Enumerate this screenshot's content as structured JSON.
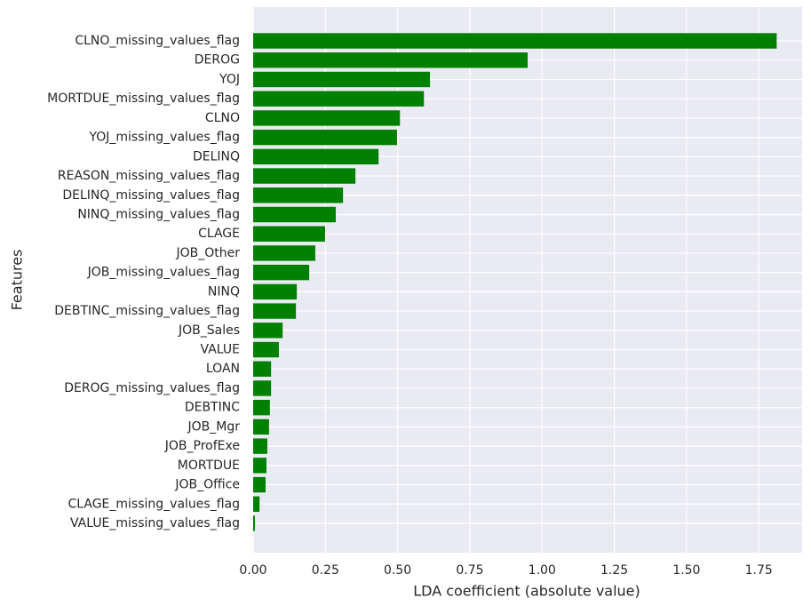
{
  "chart_data": {
    "type": "barh",
    "xlabel": "LDA coefficient (absolute value)",
    "ylabel": "Features",
    "categories": [
      "CLNO_missing_values_flag",
      "DEROG",
      "YOJ",
      "MORTDUE_missing_values_flag",
      "CLNO",
      "YOJ_missing_values_flag",
      "DELINQ",
      "REASON_missing_values_flag",
      "DELINQ_missing_values_flag",
      "NINQ_missing_values_flag",
      "CLAGE",
      "JOB_Other",
      "JOB_missing_values_flag",
      "NINQ",
      "DEBTINC_missing_values_flag",
      "JOB_Sales",
      "VALUE",
      "LOAN",
      "DEROG_missing_values_flag",
      "DEBTINC",
      "JOB_Mgr",
      "JOB_ProfExe",
      "MORTDUE",
      "JOB_Office",
      "CLAGE_missing_values_flag",
      "VALUE_missing_values_flag"
    ],
    "values": [
      1.812,
      0.95,
      0.612,
      0.591,
      0.508,
      0.498,
      0.434,
      0.354,
      0.311,
      0.286,
      0.249,
      0.215,
      0.194,
      0.151,
      0.148,
      0.102,
      0.089,
      0.062,
      0.062,
      0.058,
      0.055,
      0.049,
      0.046,
      0.043,
      0.022,
      0.006
    ],
    "color": "#008000",
    "xlim": [
      0,
      1.9
    ],
    "xticks": [
      {
        "value": 0,
        "label": "0.00"
      },
      0.25,
      {
        "value": 0.5,
        "label": "0.50"
      },
      0.75,
      {
        "value": 1,
        "label": "1.00"
      },
      1.25,
      {
        "value": 1.5,
        "label": "1.50"
      },
      1.75
    ],
    "grid": true
  }
}
